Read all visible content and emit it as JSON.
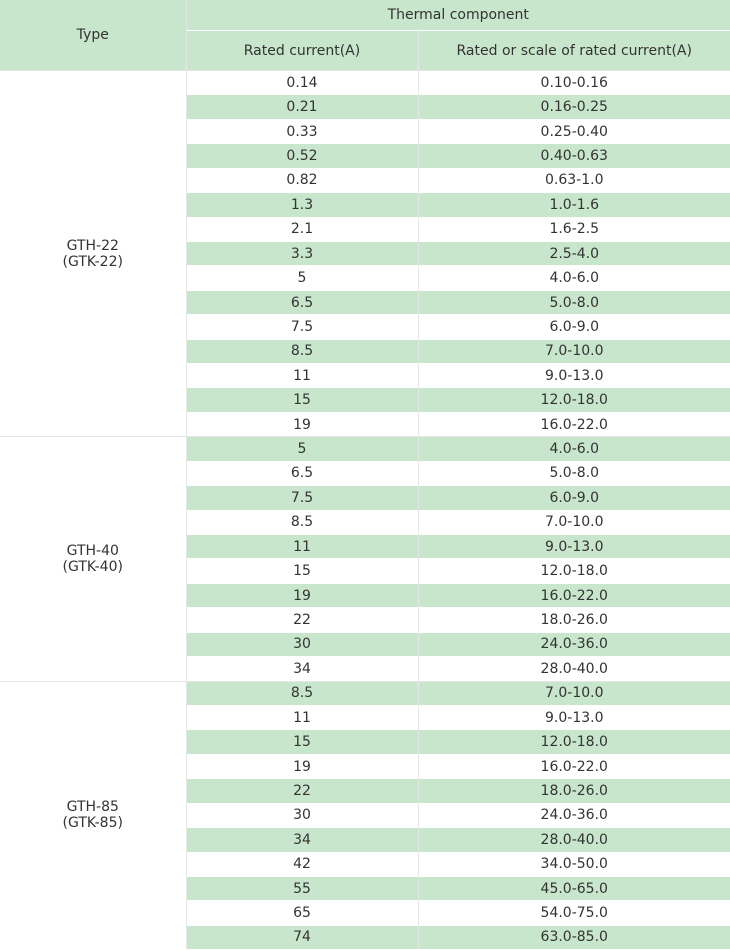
{
  "header": {
    "type_label": "Type",
    "thermal_label": "Thermal component",
    "rated_label": "Rated current(A)",
    "scale_label": "Rated or scale of rated current(A)"
  },
  "groups": [
    {
      "type_line1": "GTH-22",
      "type_line2": "(GTK-22)",
      "rows": [
        {
          "rated": "0.14",
          "scale": "0.10-0.16"
        },
        {
          "rated": "0.21",
          "scale": "0.16-0.25"
        },
        {
          "rated": "0.33",
          "scale": "0.25-0.40"
        },
        {
          "rated": "0.52",
          "scale": "0.40-0.63"
        },
        {
          "rated": "0.82",
          "scale": "0.63-1.0"
        },
        {
          "rated": "1.3",
          "scale": "1.0-1.6"
        },
        {
          "rated": "2.1",
          "scale": "1.6-2.5"
        },
        {
          "rated": "3.3",
          "scale": "2.5-4.0"
        },
        {
          "rated": "5",
          "scale": "4.0-6.0"
        },
        {
          "rated": "6.5",
          "scale": "5.0-8.0"
        },
        {
          "rated": "7.5",
          "scale": "6.0-9.0"
        },
        {
          "rated": "8.5",
          "scale": "7.0-10.0"
        },
        {
          "rated": "11",
          "scale": "9.0-13.0"
        },
        {
          "rated": "15",
          "scale": "12.0-18.0"
        },
        {
          "rated": "19",
          "scale": "16.0-22.0"
        }
      ]
    },
    {
      "type_line1": "GTH-40",
      "type_line2": "(GTK-40)",
      "rows": [
        {
          "rated": "5",
          "scale": "4.0-6.0"
        },
        {
          "rated": "6.5",
          "scale": "5.0-8.0"
        },
        {
          "rated": "7.5",
          "scale": "6.0-9.0"
        },
        {
          "rated": "8.5",
          "scale": "7.0-10.0"
        },
        {
          "rated": "11",
          "scale": "9.0-13.0"
        },
        {
          "rated": "15",
          "scale": "12.0-18.0"
        },
        {
          "rated": "19",
          "scale": "16.0-22.0"
        },
        {
          "rated": "22",
          "scale": "18.0-26.0"
        },
        {
          "rated": "30",
          "scale": "24.0-36.0"
        },
        {
          "rated": "34",
          "scale": "28.0-40.0"
        }
      ]
    },
    {
      "type_line1": "GTH-85",
      "type_line2": "(GTK-85)",
      "rows": [
        {
          "rated": "8.5",
          "scale": "7.0-10.0"
        },
        {
          "rated": "11",
          "scale": "9.0-13.0"
        },
        {
          "rated": "15",
          "scale": "12.0-18.0"
        },
        {
          "rated": "19",
          "scale": "16.0-22.0"
        },
        {
          "rated": "22",
          "scale": "18.0-26.0"
        },
        {
          "rated": "30",
          "scale": "24.0-36.0"
        },
        {
          "rated": "34",
          "scale": "28.0-40.0"
        },
        {
          "rated": "42",
          "scale": "34.0-50.0"
        },
        {
          "rated": "55",
          "scale": "45.0-65.0"
        },
        {
          "rated": "65",
          "scale": "54.0-75.0"
        },
        {
          "rated": "74",
          "scale": "63.0-85.0"
        }
      ]
    }
  ],
  "colors": {
    "shade": "#c8e6cb",
    "text": "#333333"
  }
}
